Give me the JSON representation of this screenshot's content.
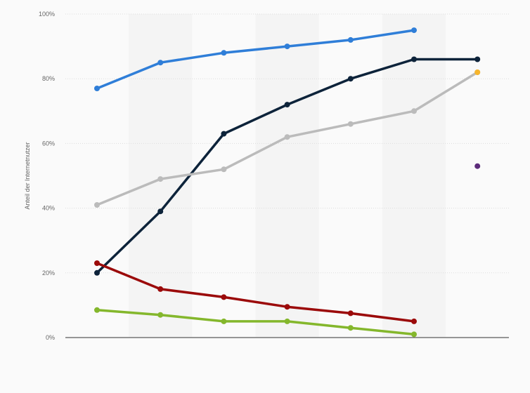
{
  "chart_data": {
    "type": "line",
    "title": "",
    "xlabel": "",
    "ylabel": "Anteil der Internetnutzer",
    "categories": [
      "",
      "",
      "",
      "",
      "",
      "",
      ""
    ],
    "ylim": [
      0,
      100
    ],
    "yticks": [
      0,
      20,
      40,
      60,
      80,
      100
    ],
    "ytick_labels": [
      "0%",
      "20%",
      "40%",
      "60%",
      "80%",
      "100%"
    ],
    "grid": true,
    "legend": "none",
    "series": [
      {
        "color": "#2f7ed8",
        "values": [
          77,
          85,
          88,
          90,
          92,
          95,
          null
        ]
      },
      {
        "color": "#0d233a",
        "values": [
          20,
          39,
          63,
          72,
          80,
          86,
          86
        ]
      },
      {
        "color": "#bbbbbb",
        "values": [
          41,
          49,
          52,
          62,
          66,
          70,
          82
        ]
      },
      {
        "color": "#9b0a0a",
        "values": [
          23,
          15,
          12.5,
          9.5,
          7.5,
          5,
          null
        ]
      },
      {
        "color": "#84b72c",
        "values": [
          8.5,
          7,
          5,
          5,
          3,
          1,
          null
        ]
      },
      {
        "color": "#f7b52c",
        "values": [
          null,
          null,
          null,
          null,
          null,
          null,
          82
        ]
      },
      {
        "color": "#5c2b7a",
        "values": [
          null,
          null,
          null,
          null,
          null,
          null,
          53
        ]
      }
    ]
  }
}
